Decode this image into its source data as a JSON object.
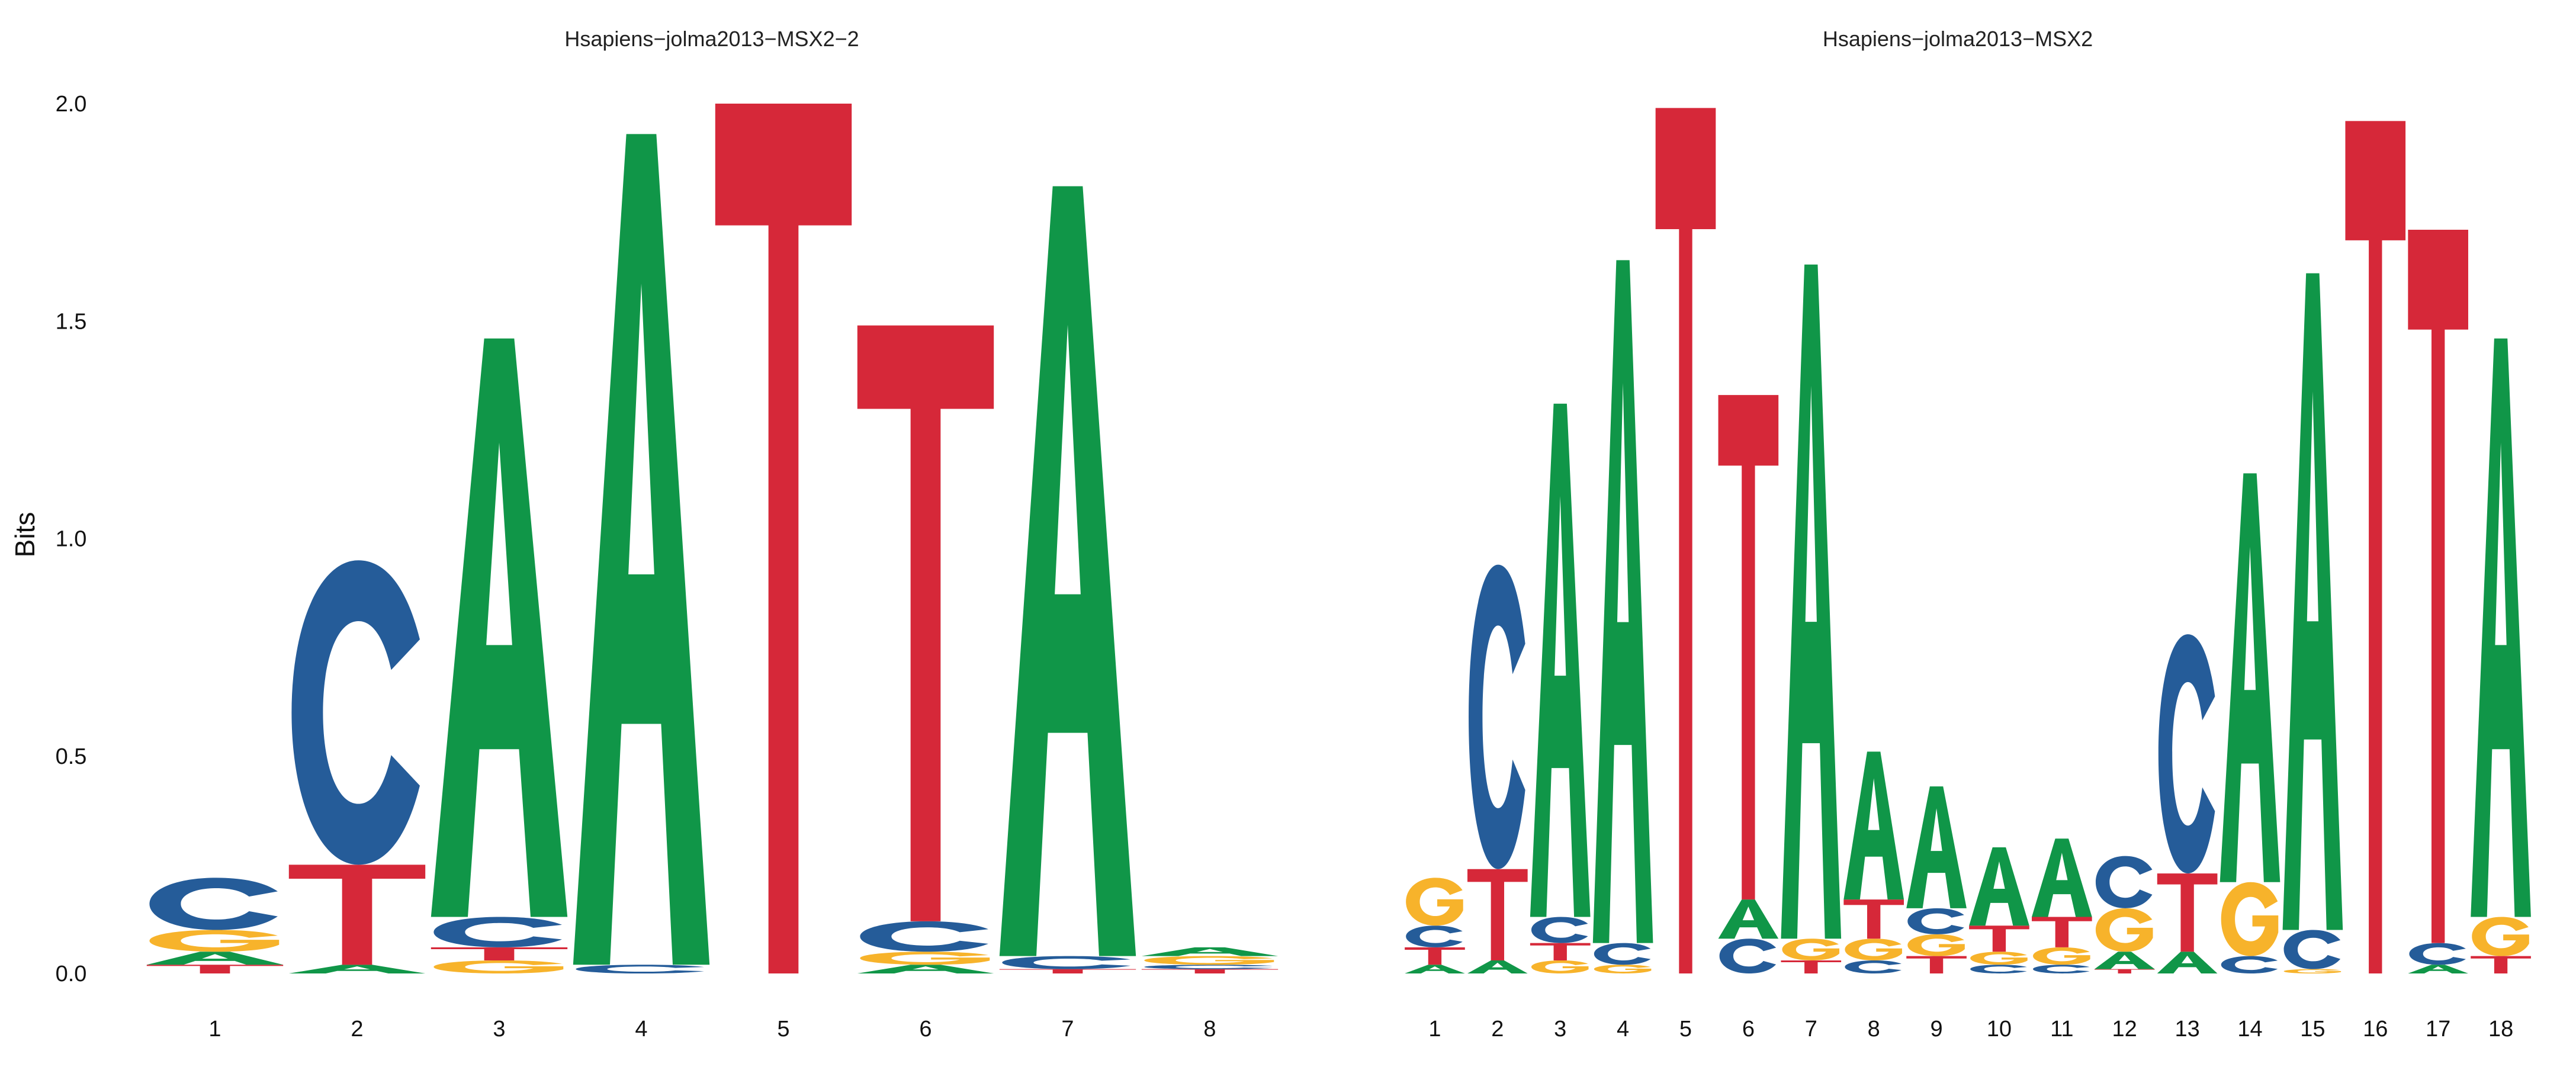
{
  "colors": {
    "A": "#109648",
    "C": "#255C99",
    "G": "#F7B32B",
    "T": "#D62839"
  },
  "chart_data": [
    {
      "type": "sequence-logo",
      "title": "Hsapiens−jolma2013−MSX2−2",
      "ylabel": "Bits",
      "ylim": [
        0,
        2
      ],
      "yticks": [
        "0.0",
        "0.5",
        "1.0",
        "1.5",
        "2.0"
      ],
      "positions": [
        {
          "label": "1",
          "stack": [
            {
              "l": "T",
              "h": 0.02
            },
            {
              "l": "A",
              "h": 0.03
            },
            {
              "l": "G",
              "h": 0.05
            },
            {
              "l": "C",
              "h": 0.12
            }
          ]
        },
        {
          "label": "2",
          "stack": [
            {
              "l": "A",
              "h": 0.02
            },
            {
              "l": "T",
              "h": 0.23
            },
            {
              "l": "C",
              "h": 0.7
            }
          ]
        },
        {
          "label": "3",
          "stack": [
            {
              "l": "G",
              "h": 0.03
            },
            {
              "l": "T",
              "h": 0.03
            },
            {
              "l": "C",
              "h": 0.07
            },
            {
              "l": "A",
              "h": 1.33
            }
          ]
        },
        {
          "label": "4",
          "stack": [
            {
              "l": "C",
              "h": 0.02
            },
            {
              "l": "A",
              "h": 1.91
            }
          ]
        },
        {
          "label": "5",
          "stack": [
            {
              "l": "T",
              "h": 2.0
            }
          ]
        },
        {
          "label": "6",
          "stack": [
            {
              "l": "A",
              "h": 0.02
            },
            {
              "l": "G",
              "h": 0.03
            },
            {
              "l": "C",
              "h": 0.07
            },
            {
              "l": "T",
              "h": 1.37
            }
          ]
        },
        {
          "label": "7",
          "stack": [
            {
              "l": "T",
              "h": 0.01
            },
            {
              "l": "C",
              "h": 0.03
            },
            {
              "l": "A",
              "h": 1.77
            }
          ]
        },
        {
          "label": "8",
          "stack": [
            {
              "l": "T",
              "h": 0.01
            },
            {
              "l": "C",
              "h": 0.01
            },
            {
              "l": "G",
              "h": 0.02
            },
            {
              "l": "A",
              "h": 0.02
            }
          ]
        }
      ]
    },
    {
      "type": "sequence-logo",
      "title": "Hsapiens−jolma2013−MSX2",
      "ylabel": "",
      "ylim": [
        0,
        2
      ],
      "yticks": [],
      "positions": [
        {
          "label": "1",
          "stack": [
            {
              "l": "A",
              "h": 0.02
            },
            {
              "l": "T",
              "h": 0.04
            },
            {
              "l": "C",
              "h": 0.05
            },
            {
              "l": "G",
              "h": 0.11
            }
          ]
        },
        {
          "label": "2",
          "stack": [
            {
              "l": "A",
              "h": 0.03
            },
            {
              "l": "T",
              "h": 0.21
            },
            {
              "l": "C",
              "h": 0.7
            }
          ]
        },
        {
          "label": "3",
          "stack": [
            {
              "l": "G",
              "h": 0.03
            },
            {
              "l": "T",
              "h": 0.04
            },
            {
              "l": "C",
              "h": 0.06
            },
            {
              "l": "A",
              "h": 1.18
            }
          ]
        },
        {
          "label": "4",
          "stack": [
            {
              "l": "G",
              "h": 0.02
            },
            {
              "l": "C",
              "h": 0.05
            },
            {
              "l": "A",
              "h": 1.57
            }
          ]
        },
        {
          "label": "5",
          "stack": [
            {
              "l": "T",
              "h": 1.99
            }
          ]
        },
        {
          "label": "6",
          "stack": [
            {
              "l": "C",
              "h": 0.08
            },
            {
              "l": "A",
              "h": 0.09
            },
            {
              "l": "T",
              "h": 1.16
            }
          ]
        },
        {
          "label": "7",
          "stack": [
            {
              "l": "T",
              "h": 0.03
            },
            {
              "l": "G",
              "h": 0.05
            },
            {
              "l": "A",
              "h": 1.55
            }
          ]
        },
        {
          "label": "8",
          "stack": [
            {
              "l": "C",
              "h": 0.03
            },
            {
              "l": "G",
              "h": 0.05
            },
            {
              "l": "T",
              "h": 0.09
            },
            {
              "l": "A",
              "h": 0.34
            }
          ]
        },
        {
          "label": "9",
          "stack": [
            {
              "l": "T",
              "h": 0.04
            },
            {
              "l": "G",
              "h": 0.05
            },
            {
              "l": "C",
              "h": 0.06
            },
            {
              "l": "A",
              "h": 0.28
            }
          ]
        },
        {
          "label": "10",
          "stack": [
            {
              "l": "C",
              "h": 0.02
            },
            {
              "l": "G",
              "h": 0.03
            },
            {
              "l": "T",
              "h": 0.06
            },
            {
              "l": "A",
              "h": 0.18
            }
          ]
        },
        {
          "label": "11",
          "stack": [
            {
              "l": "C",
              "h": 0.02
            },
            {
              "l": "G",
              "h": 0.04
            },
            {
              "l": "T",
              "h": 0.07
            },
            {
              "l": "A",
              "h": 0.18
            }
          ]
        },
        {
          "label": "12",
          "stack": [
            {
              "l": "T",
              "h": 0.01
            },
            {
              "l": "A",
              "h": 0.04
            },
            {
              "l": "G",
              "h": 0.1
            },
            {
              "l": "C",
              "h": 0.12
            }
          ]
        },
        {
          "label": "13",
          "stack": [
            {
              "l": "A",
              "h": 0.05
            },
            {
              "l": "T",
              "h": 0.18
            },
            {
              "l": "C",
              "h": 0.55
            }
          ]
        },
        {
          "label": "14",
          "stack": [
            {
              "l": "C",
              "h": 0.04
            },
            {
              "l": "G",
              "h": 0.17
            },
            {
              "l": "A",
              "h": 0.94
            }
          ]
        },
        {
          "label": "15",
          "stack": [
            {
              "l": "G",
              "h": 0.01
            },
            {
              "l": "C",
              "h": 0.09
            },
            {
              "l": "A",
              "h": 1.51
            }
          ]
        },
        {
          "label": "16",
          "stack": [
            {
              "l": "T",
              "h": 1.96
            }
          ]
        },
        {
          "label": "17",
          "stack": [
            {
              "l": "A",
              "h": 0.02
            },
            {
              "l": "C",
              "h": 0.05
            },
            {
              "l": "T",
              "h": 1.64
            }
          ]
        },
        {
          "label": "18",
          "stack": [
            {
              "l": "T",
              "h": 0.04
            },
            {
              "l": "G",
              "h": 0.09
            },
            {
              "l": "A",
              "h": 1.33
            }
          ]
        }
      ]
    }
  ]
}
